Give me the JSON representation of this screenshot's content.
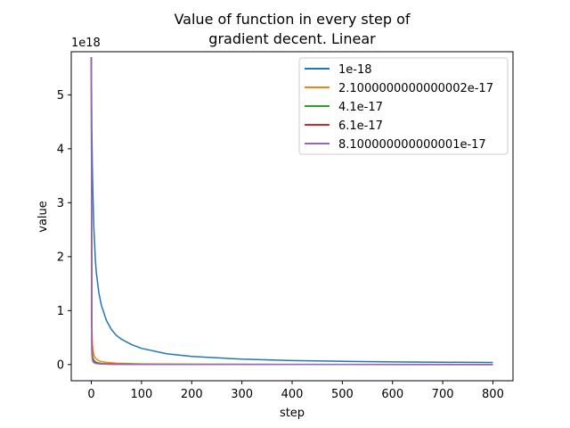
{
  "chart_data": {
    "type": "line",
    "title_lines": [
      "Value of function in every step of",
      "gradient decent. Linear"
    ],
    "xlabel": "step",
    "ylabel": "value",
    "y_offset_label": "1e18",
    "xlim": [
      -40,
      840
    ],
    "ylim": [
      -3e+17,
      5.8e+18
    ],
    "xticks": [
      0,
      100,
      200,
      300,
      400,
      500,
      600,
      700,
      800
    ],
    "yticks": [
      0,
      1,
      2,
      3,
      4,
      5
    ],
    "y_scale": 1e+18,
    "grid": false,
    "legend_position": "top-right",
    "series": [
      {
        "name": "1e-18",
        "color": "#1f77b4",
        "x": [
          0,
          1,
          2,
          3,
          5,
          8,
          10,
          15,
          20,
          30,
          40,
          50,
          60,
          80,
          100,
          150,
          200,
          300,
          400,
          500,
          600,
          700,
          800
        ],
        "y": [
          5.7e+18,
          4.35e+18,
          3.7e+18,
          3.2e+18,
          2.55e+18,
          1.95e+18,
          1.7e+18,
          1.33e+18,
          1.1e+18,
          8.2e+17,
          6.5e+17,
          5.4e+17,
          4.7e+17,
          3.7e+17,
          3e+17,
          2e+17,
          1.5e+17,
          1e+17,
          7.5e+16,
          6e+16,
          5e+16,
          4.3e+16,
          3.8e+16
        ]
      },
      {
        "name": "2.1000000000000002e-17",
        "color": "#ff7f0e",
        "x": [
          0,
          1,
          2,
          3,
          5,
          8,
          10,
          15,
          20,
          30,
          50,
          100,
          200,
          400,
          800
        ],
        "y": [
          5.7e+18,
          7.5e+17,
          4.2e+17,
          2.9e+17,
          1.8e+17,
          1.2e+17,
          1e+17,
          7e+16,
          5.5e+16,
          4e+16,
          2.5e+16,
          1.3e+16,
          7000000000000000.0,
          3000000000000000.0,
          2000000000000000.0
        ]
      },
      {
        "name": "4.1e-17",
        "color": "#2ca02c",
        "x": [
          0,
          1,
          2,
          3,
          5,
          10,
          20,
          50,
          100,
          800
        ],
        "y": [
          5.7e+18,
          4e+17,
          2e+17,
          1.3e+17,
          8e+16,
          4e+16,
          2e+16,
          8000000000000000.0,
          4000000000000000.0,
          500000000000000.0
        ]
      },
      {
        "name": "6.1e-17",
        "color": "#d62728",
        "x": [
          0,
          1,
          2,
          3,
          5,
          10,
          20,
          50,
          100,
          800
        ],
        "y": [
          5.7e+18,
          2.7e+17,
          1.3e+17,
          9e+16,
          5e+16,
          2.5e+16,
          1.2e+16,
          5000000000000000.0,
          2500000000000000.0,
          300000000000000.0
        ]
      },
      {
        "name": "8.100000000000001e-17",
        "color": "#9467bd",
        "x": [
          0,
          1,
          2,
          3,
          5,
          10,
          20,
          50,
          100,
          800
        ],
        "y": [
          5.7e+18,
          2e+17,
          1e+17,
          6e+16,
          3.5e+16,
          1.8e+16,
          9000000000000000.0,
          3000000000000000.0,
          1500000000000000.0,
          200000000000000.0
        ]
      }
    ]
  }
}
